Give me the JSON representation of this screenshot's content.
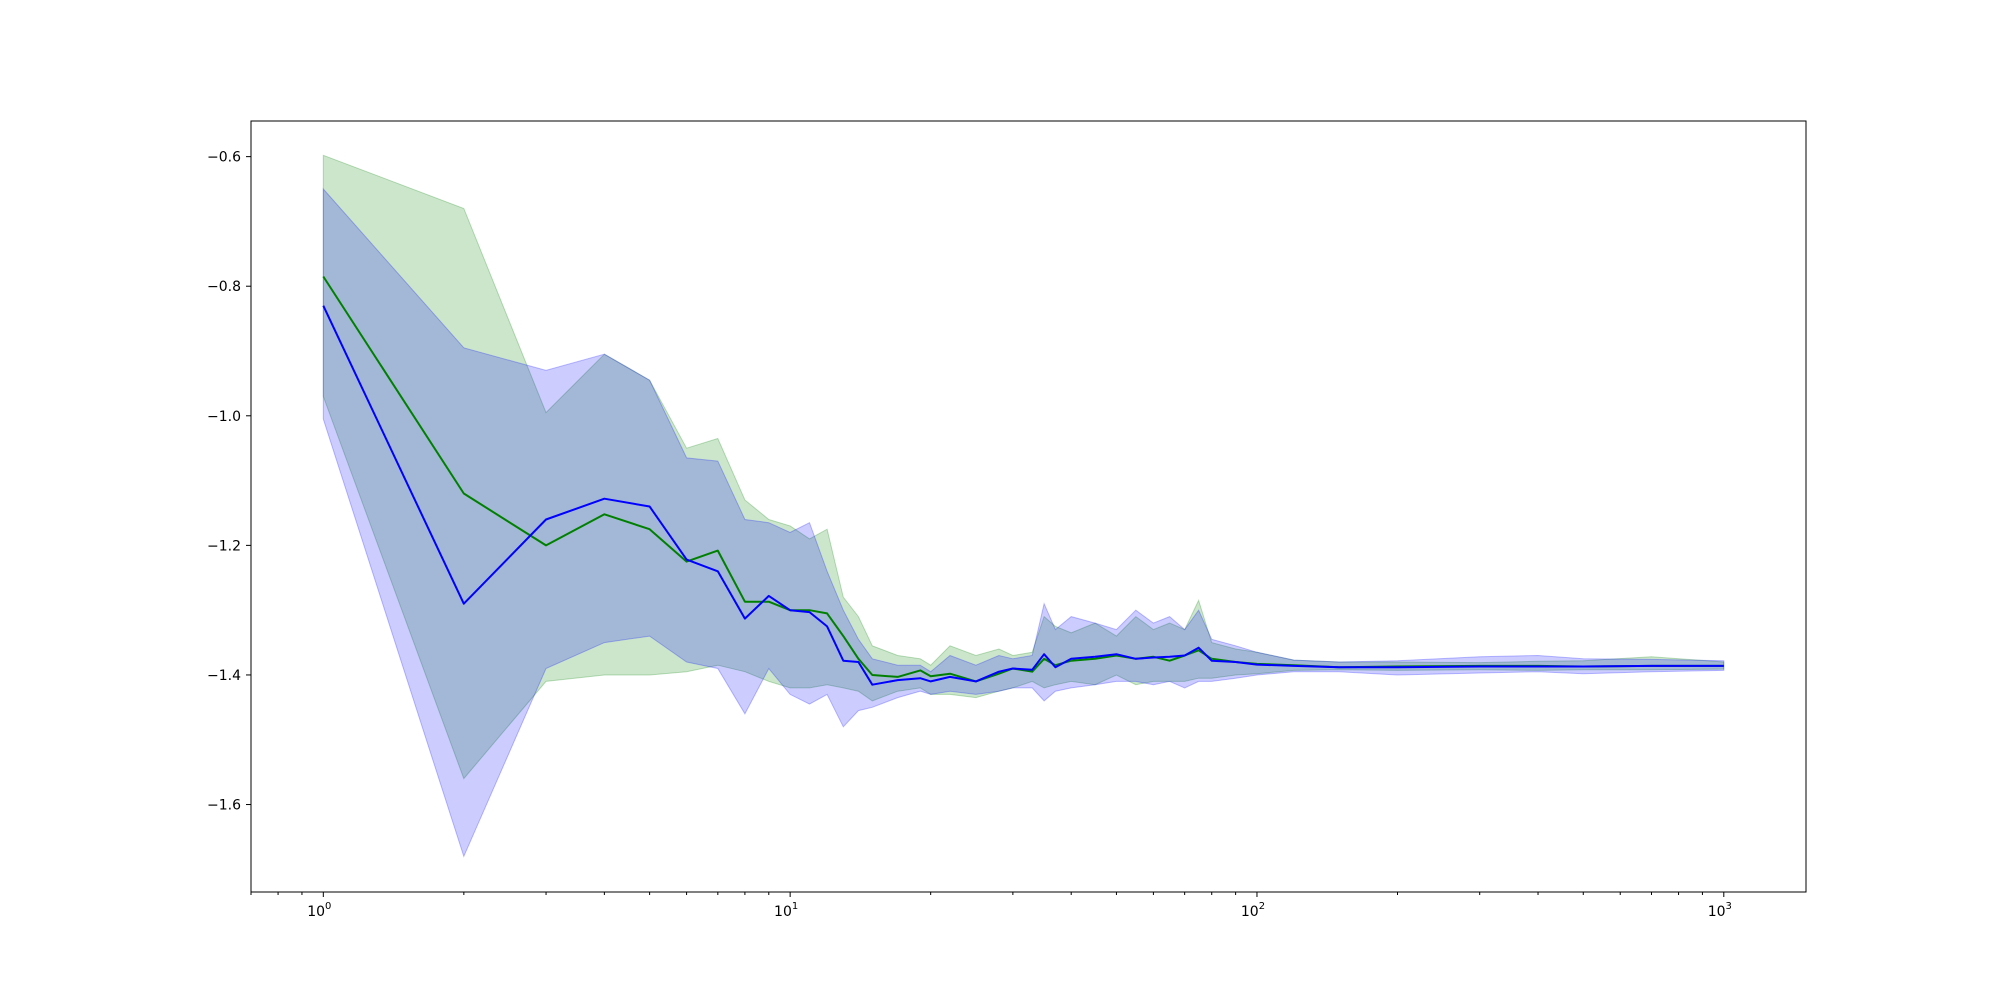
{
  "chart_data": {
    "type": "line",
    "title": "",
    "xlabel": "",
    "ylabel": "",
    "xscale": "log",
    "xlim": [
      0.7,
      1500
    ],
    "ylim": [
      -1.735,
      -0.545
    ],
    "grid": false,
    "legend": "none",
    "x_ticks": [
      {
        "value": 1,
        "base": "10",
        "exp": "0"
      },
      {
        "value": 10,
        "base": "10",
        "exp": "1"
      },
      {
        "value": 100,
        "base": "10",
        "exp": "2"
      },
      {
        "value": 1000,
        "base": "10",
        "exp": "3"
      }
    ],
    "y_ticks": [
      {
        "value": -0.6,
        "label": "−0.6"
      },
      {
        "value": -0.8,
        "label": "−0.8"
      },
      {
        "value": -1.0,
        "label": "−1.0"
      },
      {
        "value": -1.2,
        "label": "−1.2"
      },
      {
        "value": -1.4,
        "label": "−1.4"
      },
      {
        "value": -1.6,
        "label": "−1.6"
      }
    ],
    "series": [
      {
        "color": "#008000",
        "band_color": "#008000",
        "band_opacity": 0.2,
        "x": [
          1,
          2,
          3,
          4,
          5,
          6,
          7,
          8,
          9,
          10,
          11,
          12,
          13,
          14,
          15,
          17,
          19,
          20,
          22,
          25,
          28,
          30,
          33,
          35,
          37,
          40,
          45,
          50,
          55,
          60,
          65,
          70,
          75,
          80,
          90,
          100,
          120,
          150,
          200,
          300,
          400,
          500,
          700,
          1000
        ],
        "y": [
          -0.785,
          -1.12,
          -1.2,
          -1.152,
          -1.175,
          -1.225,
          -1.208,
          -1.287,
          -1.287,
          -1.3,
          -1.3,
          -1.305,
          -1.34,
          -1.375,
          -1.4,
          -1.403,
          -1.393,
          -1.402,
          -1.398,
          -1.41,
          -1.398,
          -1.39,
          -1.395,
          -1.375,
          -1.385,
          -1.378,
          -1.375,
          -1.37,
          -1.375,
          -1.372,
          -1.378,
          -1.37,
          -1.362,
          -1.375,
          -1.38,
          -1.383,
          -1.385,
          -1.388,
          -1.387,
          -1.386,
          -1.386,
          -1.387,
          -1.386,
          -1.386
        ],
        "upper": [
          -0.598,
          -0.68,
          -0.995,
          -0.905,
          -0.945,
          -1.05,
          -1.035,
          -1.13,
          -1.16,
          -1.17,
          -1.19,
          -1.175,
          -1.28,
          -1.31,
          -1.355,
          -1.37,
          -1.375,
          -1.385,
          -1.355,
          -1.37,
          -1.36,
          -1.37,
          -1.365,
          -1.31,
          -1.325,
          -1.335,
          -1.32,
          -1.34,
          -1.31,
          -1.33,
          -1.32,
          -1.33,
          -1.285,
          -1.35,
          -1.36,
          -1.365,
          -1.377,
          -1.38,
          -1.38,
          -1.381,
          -1.379,
          -1.378,
          -1.372,
          -1.38
        ],
        "lower": [
          -0.97,
          -1.56,
          -1.41,
          -1.4,
          -1.4,
          -1.395,
          -1.385,
          -1.395,
          -1.41,
          -1.42,
          -1.42,
          -1.415,
          -1.42,
          -1.425,
          -1.44,
          -1.425,
          -1.42,
          -1.43,
          -1.43,
          -1.435,
          -1.425,
          -1.42,
          -1.41,
          -1.42,
          -1.415,
          -1.41,
          -1.415,
          -1.4,
          -1.415,
          -1.41,
          -1.41,
          -1.41,
          -1.405,
          -1.405,
          -1.4,
          -1.398,
          -1.393,
          -1.392,
          -1.393,
          -1.392,
          -1.393,
          -1.392,
          -1.392,
          -1.391
        ]
      },
      {
        "color": "#0000ff",
        "band_color": "#0000ff",
        "band_opacity": 0.2,
        "x": [
          1,
          2,
          3,
          4,
          5,
          6,
          7,
          8,
          9,
          10,
          11,
          12,
          13,
          14,
          15,
          17,
          19,
          20,
          22,
          25,
          28,
          30,
          33,
          35,
          37,
          40,
          45,
          50,
          55,
          60,
          65,
          70,
          75,
          80,
          90,
          100,
          120,
          150,
          200,
          300,
          400,
          500,
          700,
          1000
        ],
        "y": [
          -0.83,
          -1.29,
          -1.16,
          -1.128,
          -1.14,
          -1.222,
          -1.24,
          -1.313,
          -1.278,
          -1.3,
          -1.303,
          -1.325,
          -1.378,
          -1.38,
          -1.415,
          -1.408,
          -1.405,
          -1.41,
          -1.403,
          -1.41,
          -1.395,
          -1.39,
          -1.392,
          -1.368,
          -1.388,
          -1.375,
          -1.372,
          -1.368,
          -1.375,
          -1.373,
          -1.372,
          -1.37,
          -1.358,
          -1.378,
          -1.38,
          -1.384,
          -1.386,
          -1.388,
          -1.388,
          -1.387,
          -1.387,
          -1.387,
          -1.386,
          -1.386
        ],
        "upper": [
          -0.65,
          -0.895,
          -0.93,
          -0.905,
          -0.945,
          -1.065,
          -1.07,
          -1.16,
          -1.165,
          -1.18,
          -1.165,
          -1.24,
          -1.3,
          -1.345,
          -1.375,
          -1.385,
          -1.385,
          -1.395,
          -1.37,
          -1.385,
          -1.37,
          -1.375,
          -1.37,
          -1.29,
          -1.33,
          -1.31,
          -1.32,
          -1.33,
          -1.3,
          -1.32,
          -1.31,
          -1.33,
          -1.3,
          -1.345,
          -1.355,
          -1.365,
          -1.377,
          -1.38,
          -1.378,
          -1.372,
          -1.37,
          -1.375,
          -1.376,
          -1.378
        ],
        "lower": [
          -1.005,
          -1.68,
          -1.39,
          -1.35,
          -1.34,
          -1.38,
          -1.39,
          -1.46,
          -1.39,
          -1.43,
          -1.445,
          -1.43,
          -1.48,
          -1.455,
          -1.45,
          -1.435,
          -1.425,
          -1.43,
          -1.425,
          -1.43,
          -1.425,
          -1.42,
          -1.42,
          -1.44,
          -1.425,
          -1.42,
          -1.415,
          -1.41,
          -1.41,
          -1.415,
          -1.41,
          -1.42,
          -1.41,
          -1.41,
          -1.405,
          -1.4,
          -1.395,
          -1.395,
          -1.4,
          -1.397,
          -1.395,
          -1.398,
          -1.395,
          -1.393
        ]
      }
    ]
  }
}
